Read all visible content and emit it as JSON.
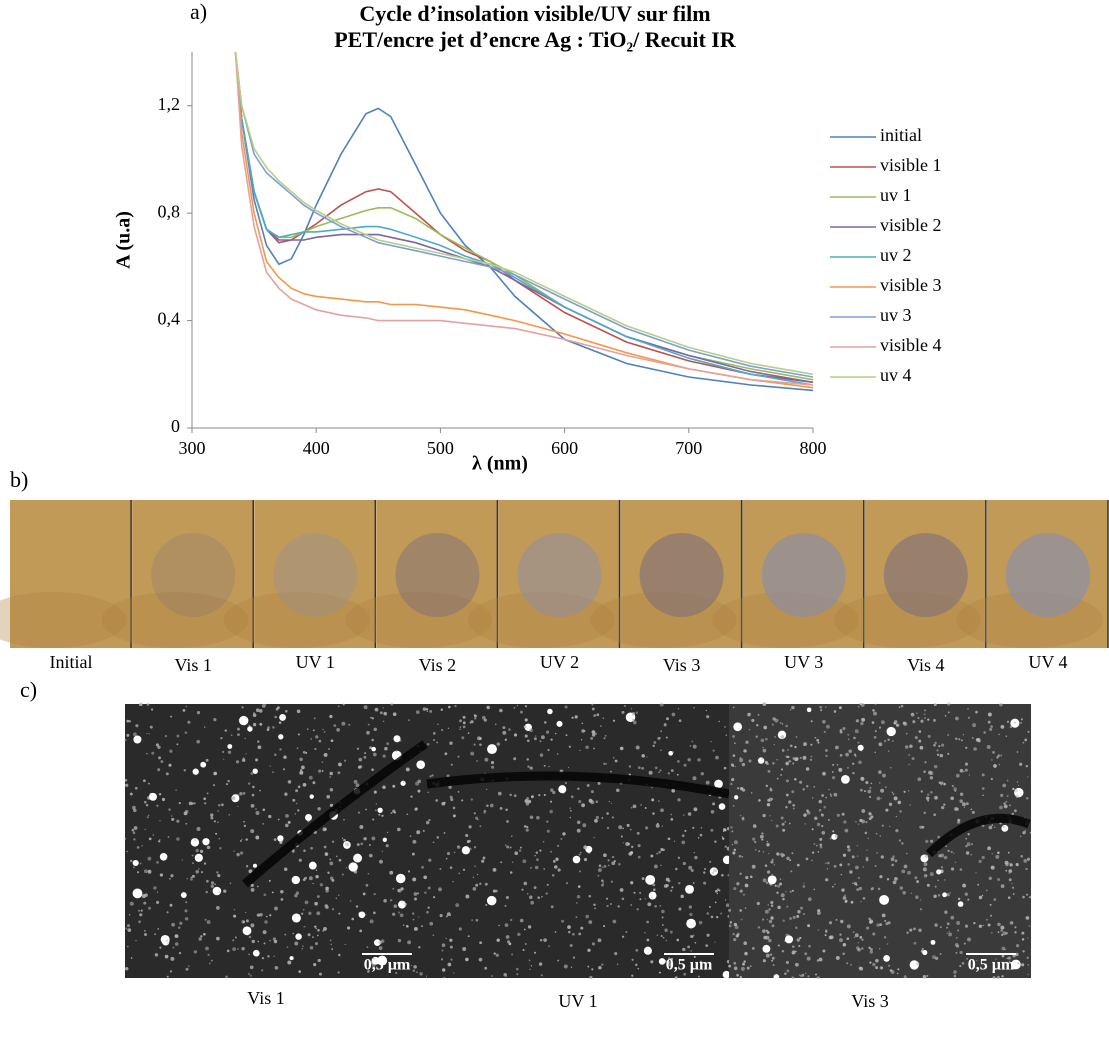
{
  "chart_data": {
    "type": "line",
    "panel_label": "a)",
    "title": "Cycle d’insolation visible/UV sur film",
    "subtitle": "PET/encre jet d’encre Ag : TiO₂/ Recuit IR",
    "x_label": "λ (nm)",
    "y_label": "A (u.a)",
    "xlim": [
      300,
      800
    ],
    "xticks": [
      300,
      400,
      500,
      600,
      700,
      800
    ],
    "ylim": [
      0,
      1.4
    ],
    "yticks": [
      0,
      {
        "value": 0.4,
        "label": "0,4"
      },
      {
        "value": 0.8,
        "label": "0,8"
      },
      {
        "value": 1.2,
        "label": "1,2"
      }
    ],
    "grid": false,
    "legend": "right",
    "x": [
      335,
      340,
      350,
      360,
      370,
      380,
      390,
      400,
      420,
      440,
      450,
      460,
      480,
      500,
      520,
      540,
      560,
      600,
      650,
      700,
      750,
      800
    ],
    "series": [
      {
        "name": "initial",
        "color": "#4f81bd",
        "values": [
          1.4,
          1.15,
          0.85,
          0.68,
          0.61,
          0.63,
          0.72,
          0.83,
          1.02,
          1.17,
          1.19,
          1.16,
          0.98,
          0.8,
          0.68,
          0.6,
          0.49,
          0.33,
          0.24,
          0.19,
          0.16,
          0.14
        ]
      },
      {
        "name": "visible 1",
        "color": "#c0504d",
        "values": [
          1.4,
          1.15,
          0.88,
          0.74,
          0.7,
          0.7,
          0.73,
          0.76,
          0.83,
          0.88,
          0.89,
          0.88,
          0.8,
          0.72,
          0.66,
          0.62,
          0.55,
          0.43,
          0.32,
          0.25,
          0.2,
          0.17
        ]
      },
      {
        "name": "uv 1",
        "color": "#9bbb59",
        "values": [
          1.4,
          1.15,
          0.88,
          0.74,
          0.71,
          0.71,
          0.73,
          0.75,
          0.78,
          0.81,
          0.82,
          0.82,
          0.78,
          0.72,
          0.67,
          0.62,
          0.57,
          0.45,
          0.34,
          0.27,
          0.22,
          0.18
        ]
      },
      {
        "name": "visible 2",
        "color": "#8064a2",
        "values": [
          1.4,
          1.15,
          0.88,
          0.74,
          0.69,
          0.7,
          0.7,
          0.71,
          0.72,
          0.72,
          0.72,
          0.71,
          0.69,
          0.66,
          0.63,
          0.6,
          0.55,
          0.45,
          0.34,
          0.27,
          0.21,
          0.17
        ]
      },
      {
        "name": "uv 2",
        "color": "#4bacc6",
        "values": [
          1.4,
          1.15,
          0.88,
          0.74,
          0.71,
          0.72,
          0.73,
          0.73,
          0.74,
          0.75,
          0.75,
          0.74,
          0.71,
          0.68,
          0.64,
          0.61,
          0.56,
          0.45,
          0.34,
          0.26,
          0.2,
          0.16
        ]
      },
      {
        "name": "visible 3",
        "color": "#f79646",
        "values": [
          1.4,
          1.1,
          0.8,
          0.62,
          0.56,
          0.52,
          0.5,
          0.49,
          0.48,
          0.47,
          0.47,
          0.46,
          0.46,
          0.45,
          0.44,
          0.42,
          0.4,
          0.35,
          0.28,
          0.22,
          0.18,
          0.15
        ]
      },
      {
        "name": "uv 3",
        "color": "#7f9fd3",
        "values": [
          1.4,
          1.2,
          1.02,
          0.95,
          0.91,
          0.87,
          0.83,
          0.8,
          0.75,
          0.71,
          0.69,
          0.68,
          0.66,
          0.64,
          0.62,
          0.6,
          0.57,
          0.48,
          0.37,
          0.29,
          0.23,
          0.19
        ]
      },
      {
        "name": "visible 4",
        "color": "#e3a1a0",
        "values": [
          1.4,
          1.05,
          0.75,
          0.58,
          0.52,
          0.48,
          0.46,
          0.44,
          0.42,
          0.41,
          0.4,
          0.4,
          0.4,
          0.4,
          0.39,
          0.38,
          0.37,
          0.33,
          0.27,
          0.22,
          0.18,
          0.16
        ]
      },
      {
        "name": "uv 4",
        "color": "#b5cf86",
        "values": [
          1.4,
          1.2,
          1.04,
          0.97,
          0.92,
          0.88,
          0.84,
          0.81,
          0.76,
          0.72,
          0.7,
          0.69,
          0.67,
          0.65,
          0.63,
          0.61,
          0.58,
          0.49,
          0.38,
          0.3,
          0.24,
          0.2
        ]
      }
    ]
  },
  "photos": {
    "panel_label": "b)",
    "labels": [
      "Initial",
      "Vis 1",
      "UV 1",
      "Vis 2",
      "UV 2",
      "Vis 3",
      "UV 3",
      "Vis 4",
      "UV 4"
    ]
  },
  "sem": {
    "panel_label": "c)",
    "labels": [
      "Vis 1",
      "UV 1",
      "Vis 3"
    ],
    "scale_bar": "0,5 µm"
  }
}
